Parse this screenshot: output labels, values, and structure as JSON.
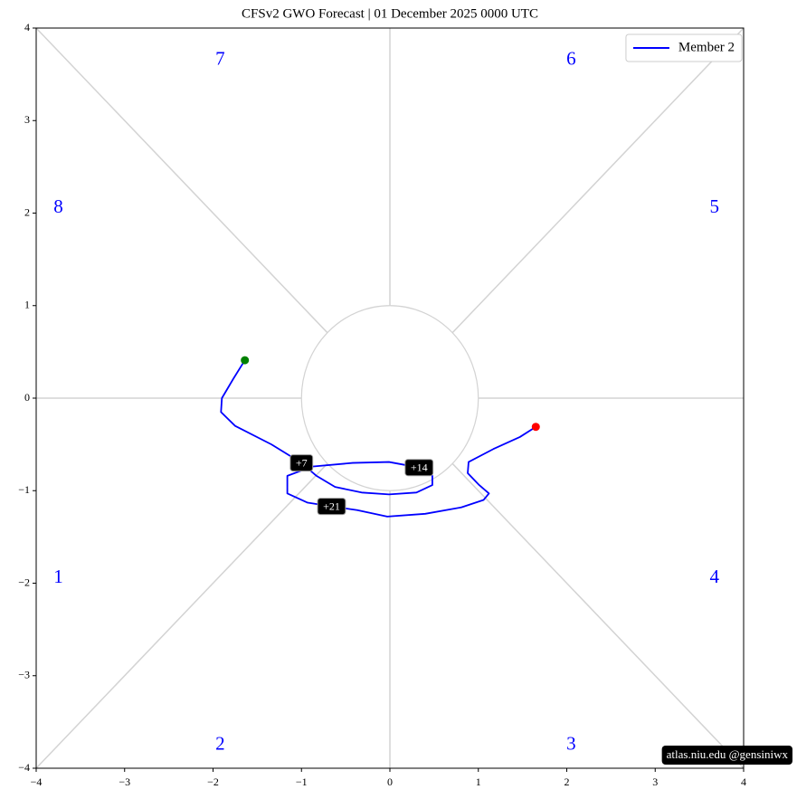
{
  "chart_data": {
    "type": "phase",
    "title": "CFSv2 GWO Forecast   |   01  December  2025 0000 UTC",
    "xlim": [
      -4,
      4
    ],
    "ylim": [
      -4,
      4
    ],
    "xticks": [
      {
        "value": -4,
        "label": "−4"
      },
      {
        "value": -3,
        "label": "−3"
      },
      {
        "value": -2,
        "label": "−2"
      },
      {
        "value": -1,
        "label": "−1"
      },
      0,
      1,
      2,
      3,
      4
    ],
    "yticks": [
      {
        "value": -4,
        "label": "−4"
      },
      {
        "value": -3,
        "label": "−3"
      },
      {
        "value": -2,
        "label": "−2"
      },
      {
        "value": -1,
        "label": "−1"
      },
      0,
      1,
      2,
      3,
      4
    ],
    "legend": "upper right",
    "series": [
      {
        "name": "Member 2",
        "color": "#0000ff",
        "x": [
          -1.64,
          -1.77,
          -1.9,
          -1.91,
          -1.75,
          -1.34,
          -1.0,
          -0.83,
          -0.62,
          -0.32,
          -0.01,
          0.3,
          0.48,
          0.48,
          0.33,
          -0.01,
          -0.42,
          -0.88,
          -1.16,
          -1.16,
          -0.93,
          -0.66,
          -0.37,
          -0.03,
          0.4,
          0.81,
          1.06,
          1.12,
          1.01,
          0.88,
          0.89,
          1.17,
          1.47,
          1.65
        ],
        "values": [
          0.41,
          0.21,
          0.0,
          -0.15,
          -0.3,
          -0.5,
          -0.7,
          -0.84,
          -0.96,
          -1.02,
          -1.04,
          -1.02,
          -0.94,
          -0.84,
          -0.75,
          -0.69,
          -0.7,
          -0.74,
          -0.84,
          -1.03,
          -1.13,
          -1.17,
          -1.21,
          -1.28,
          -1.25,
          -1.18,
          -1.1,
          -1.03,
          -0.94,
          -0.81,
          -0.69,
          -0.55,
          -0.42,
          -0.31
        ]
      }
    ],
    "start_color": "#008000",
    "end_color": "#ff0000",
    "day_labels": [
      {
        "text": "+7",
        "x": -1.0,
        "y": -0.7
      },
      {
        "text": "+14",
        "x": 0.33,
        "y": -0.75
      },
      {
        "text": "+21",
        "x": -0.66,
        "y": -1.17
      }
    ],
    "phase_labels": [
      {
        "text": "1",
        "x": -3.75,
        "y": -1.95
      },
      {
        "text": "2",
        "x": -1.92,
        "y": -3.75
      },
      {
        "text": "3",
        "x": 2.05,
        "y": -3.75
      },
      {
        "text": "4",
        "x": 3.67,
        "y": -1.95
      },
      {
        "text": "5",
        "x": 3.67,
        "y": 2.05
      },
      {
        "text": "6",
        "x": 2.05,
        "y": 3.65
      },
      {
        "text": "7",
        "x": -1.92,
        "y": 3.65
      },
      {
        "text": "8",
        "x": -3.75,
        "y": 2.05
      }
    ],
    "credit": "atlas.niu.edu  @gensiniwx"
  }
}
